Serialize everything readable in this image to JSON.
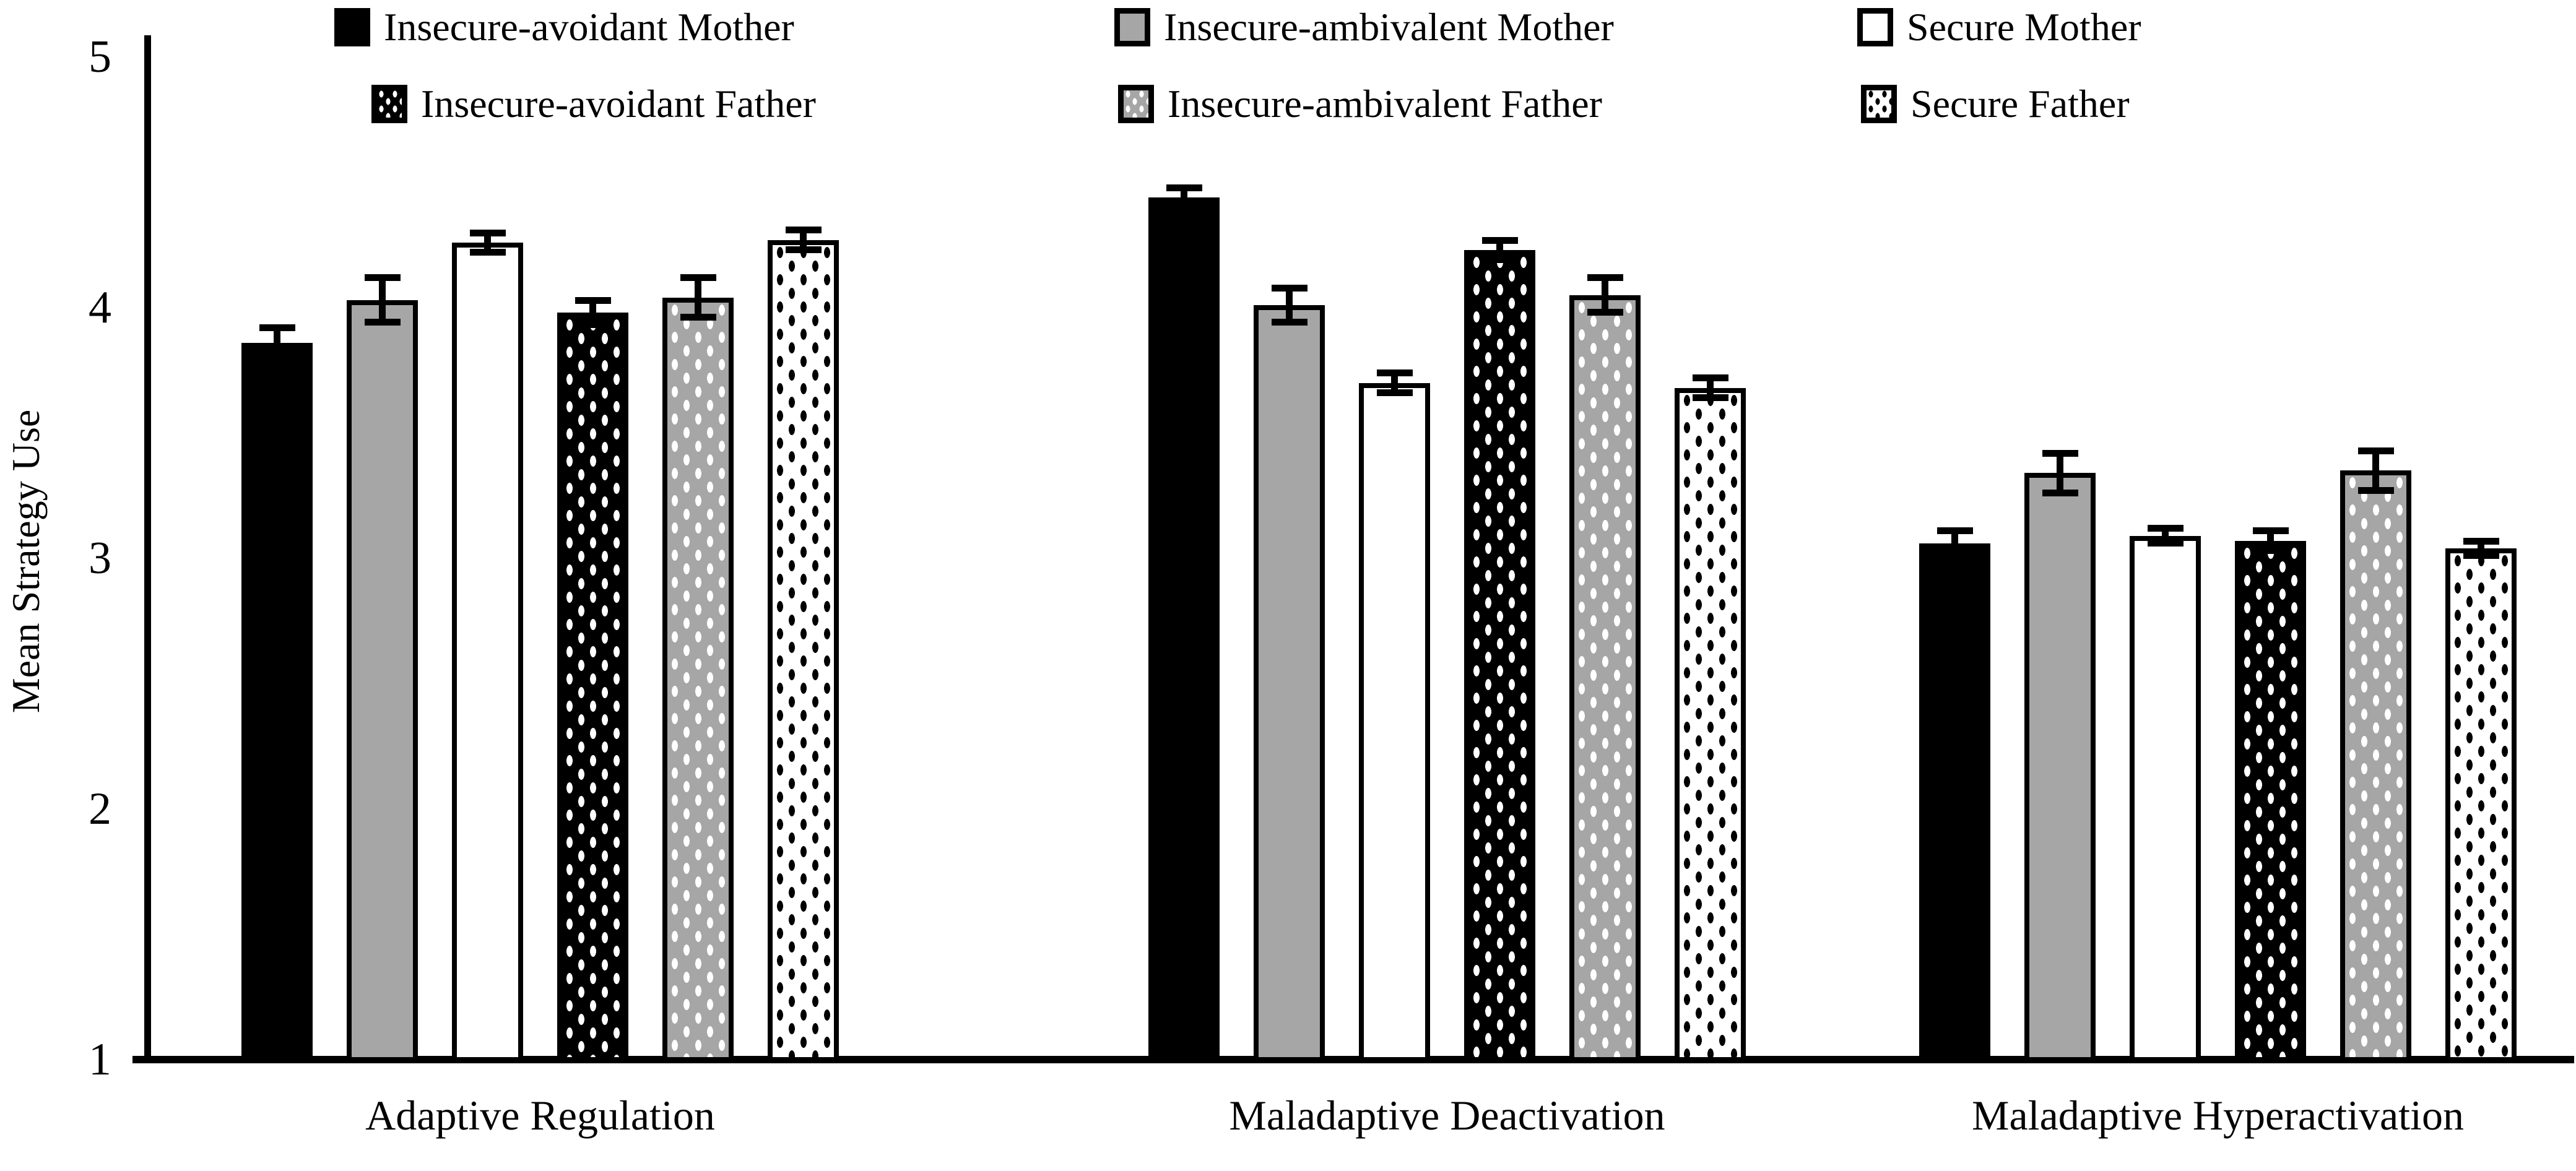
{
  "chart_data": {
    "type": "bar",
    "title": "",
    "xlabel": "",
    "ylabel": "Mean Strategy Use",
    "ylim": [
      1,
      5
    ],
    "yticks": [
      1,
      2,
      3,
      4,
      5
    ],
    "grid": false,
    "legend_position": "top",
    "error_bars": true,
    "bar_outline": "#000000",
    "categories": [
      "Adaptive Regulation",
      "Maladaptive Deactivation",
      "Maladaptive Hyperactivation"
    ],
    "series": [
      {
        "name": "Insecure-avoidant Mother",
        "fill": "#000000",
        "pattern": "solid",
        "values": [
          3.86,
          4.44,
          3.06
        ],
        "errors": [
          0.06,
          0.04,
          0.05
        ]
      },
      {
        "name": "Insecure-ambivalent Mother",
        "fill": "#a6a6a6",
        "pattern": "solid",
        "values": [
          4.03,
          4.01,
          3.34
        ],
        "errors": [
          0.09,
          0.07,
          0.08
        ]
      },
      {
        "name": "Secure Mother",
        "fill": "#ffffff",
        "pattern": "solid",
        "values": [
          4.26,
          3.7,
          3.09
        ],
        "errors": [
          0.04,
          0.04,
          0.03
        ]
      },
      {
        "name": "Insecure-avoidant Father",
        "fill": "#000000",
        "pattern": "dots-white",
        "values": [
          3.98,
          4.23,
          3.07
        ],
        "errors": [
          0.05,
          0.04,
          0.04
        ]
      },
      {
        "name": "Insecure-ambivalent Father",
        "fill": "#a6a6a6",
        "pattern": "dots-white",
        "values": [
          4.04,
          4.05,
          3.35
        ],
        "errors": [
          0.08,
          0.07,
          0.08
        ]
      },
      {
        "name": "Secure Father",
        "fill": "#ffffff",
        "pattern": "dots-black",
        "values": [
          4.27,
          3.68,
          3.04
        ],
        "errors": [
          0.04,
          0.04,
          0.03
        ]
      }
    ],
    "colors": {
      "black": "#000000",
      "gray": "#a6a6a6",
      "white": "#ffffff",
      "axis": "#000000"
    }
  }
}
